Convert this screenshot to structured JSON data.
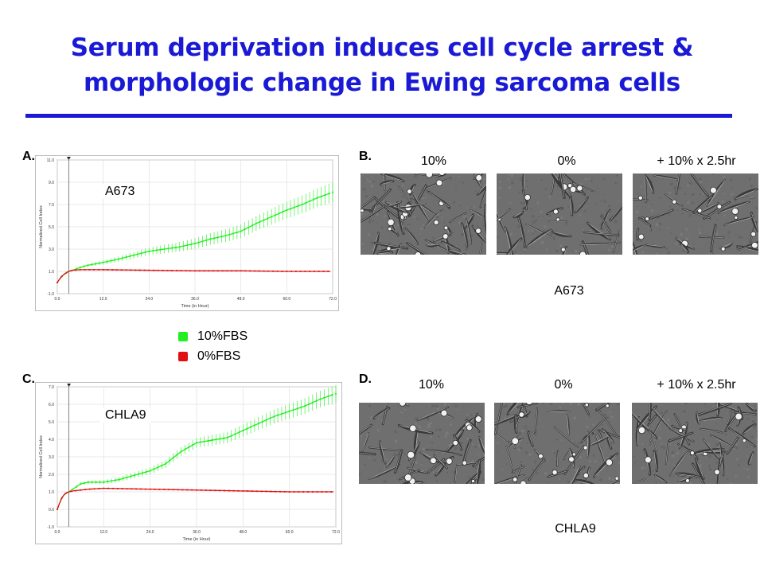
{
  "title": {
    "line1": "Serum deprivation induces cell cycle arrest &",
    "line2": "morphologic change in Ewing sarcoma cells"
  },
  "colors": {
    "title": "#1a1ad6",
    "series_10fbs": "#22ee22",
    "series_0fbs": "#e01010"
  },
  "panels": {
    "a": {
      "letter": "A."
    },
    "b": {
      "letter": "B.",
      "conditions": [
        "10%",
        "0%",
        "+ 10% x 2.5hr"
      ],
      "cell_line": "A673"
    },
    "c": {
      "letter": "C."
    },
    "d": {
      "letter": "D.",
      "conditions": [
        "10%",
        "0%",
        "+ 10% x 2.5hr"
      ],
      "cell_line": "CHLA9"
    }
  },
  "legend": [
    {
      "label": "10%FBS",
      "color": "#22ee22"
    },
    {
      "label": "0%FBS",
      "color": "#e01010"
    }
  ],
  "chart_data": [
    {
      "type": "line",
      "cell_line": "A673",
      "ylabel": "Normalized Cell Index",
      "xlabel": "Time (in Hour)",
      "xlim": [
        0,
        72
      ],
      "ylim": [
        -1,
        11
      ],
      "xticks": [
        "0.0",
        "12.0",
        "24.0",
        "36.0",
        "48.0",
        "60.0",
        "72.0"
      ],
      "yticks": [
        "-1.0",
        "1.0",
        "3.0",
        "5.0",
        "7.0",
        "9.0",
        "11.0"
      ],
      "marker_x": 3,
      "series": [
        {
          "name": "10%FBS",
          "x": [
            0,
            1,
            2,
            3,
            4,
            6,
            8,
            12,
            16,
            20,
            24,
            28,
            32,
            36,
            40,
            44,
            48,
            52,
            56,
            60,
            64,
            68,
            72
          ],
          "y": [
            0.0,
            0.5,
            0.8,
            1.0,
            1.1,
            1.35,
            1.55,
            1.8,
            2.1,
            2.45,
            2.8,
            3.0,
            3.2,
            3.5,
            3.9,
            4.2,
            4.6,
            5.3,
            5.9,
            6.5,
            7.0,
            7.6,
            8.1
          ]
        },
        {
          "name": "0%FBS",
          "x": [
            0,
            1,
            2,
            3,
            4,
            6,
            8,
            12,
            24,
            36,
            48,
            60,
            72
          ],
          "y": [
            0.0,
            0.5,
            0.8,
            1.0,
            1.1,
            1.15,
            1.15,
            1.15,
            1.1,
            1.05,
            1.05,
            1.0,
            1.0
          ]
        }
      ]
    },
    {
      "type": "line",
      "cell_line": "CHLA9",
      "ylabel": "Normalized Cell Index",
      "xlabel": "Time (in Hour)",
      "xlim": [
        0,
        72
      ],
      "ylim": [
        -1,
        7
      ],
      "xticks": [
        "0.0",
        "12.0",
        "24.0",
        "36.0",
        "48.0",
        "60.0",
        "72.0"
      ],
      "yticks": [
        "-1.0",
        "0.0",
        "1.0",
        "2.0",
        "3.0",
        "4.0",
        "5.0",
        "6.0",
        "7.0"
      ],
      "marker_x": 3,
      "series": [
        {
          "name": "10%FBS",
          "x": [
            0,
            1,
            2,
            3,
            4,
            6,
            8,
            10,
            12,
            16,
            20,
            24,
            28,
            32,
            36,
            40,
            44,
            48,
            52,
            56,
            60,
            64,
            68,
            72
          ],
          "y": [
            0.0,
            0.6,
            0.9,
            1.0,
            1.15,
            1.45,
            1.55,
            1.55,
            1.55,
            1.7,
            1.95,
            2.2,
            2.6,
            3.3,
            3.8,
            3.95,
            4.1,
            4.5,
            4.9,
            5.3,
            5.6,
            5.9,
            6.3,
            6.6
          ]
        },
        {
          "name": "0%FBS",
          "x": [
            0,
            1,
            2,
            3,
            4,
            6,
            8,
            12,
            24,
            36,
            48,
            60,
            72
          ],
          "y": [
            0.0,
            0.6,
            0.9,
            1.0,
            1.05,
            1.1,
            1.15,
            1.2,
            1.15,
            1.1,
            1.05,
            1.0,
            1.0
          ]
        }
      ]
    }
  ]
}
